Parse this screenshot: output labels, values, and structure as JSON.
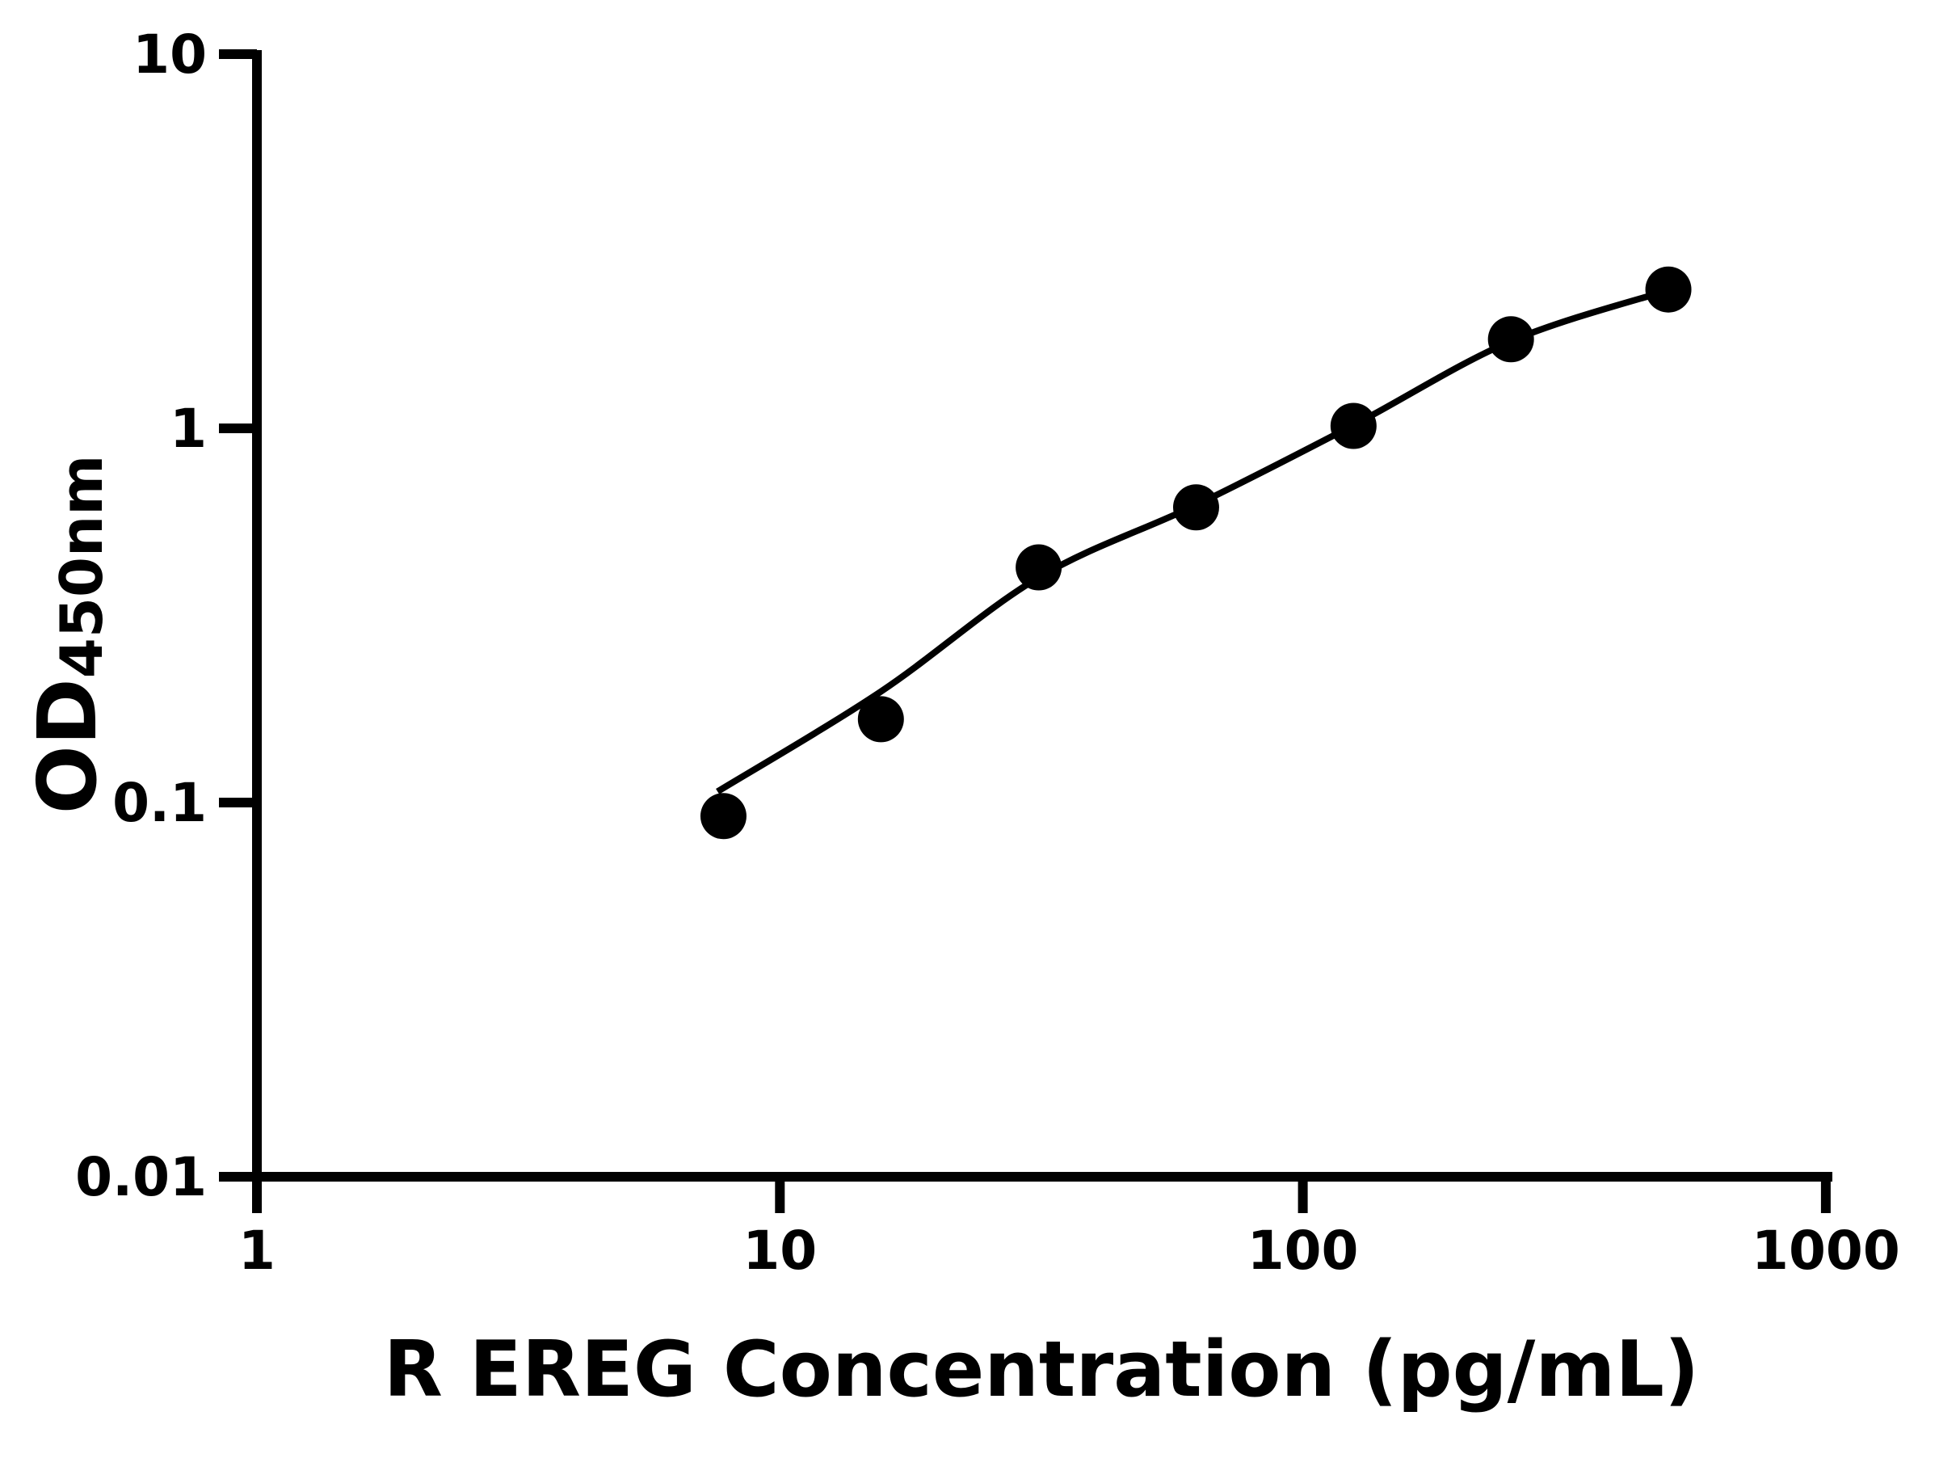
{
  "figure": {
    "background_color": "#ffffff",
    "foreground_color": "#000000"
  },
  "chart_data": {
    "type": "scatter",
    "title": "",
    "xlabel": "R EREG Concentration (pg/mL)",
    "ylabel": "OD",
    "ylabel_subscript": "450nm",
    "x_scale": "log",
    "y_scale": "log",
    "xlim": [
      1,
      1000
    ],
    "ylim": [
      0.01,
      10
    ],
    "grid": "off",
    "legend": "none",
    "x_ticks": [
      {
        "value": 1,
        "label": "1"
      },
      {
        "value": 10,
        "label": "10"
      },
      {
        "value": 100,
        "label": "100"
      },
      {
        "value": 1000,
        "label": "1000"
      }
    ],
    "y_ticks": [
      {
        "value": 10,
        "label": "10"
      },
      {
        "value": 1,
        "label": "1"
      },
      {
        "value": 0.1,
        "label": "0.1"
      },
      {
        "value": 0.01,
        "label": "0.01"
      }
    ],
    "series": [
      {
        "name": "standard-curve-fit",
        "type": "line",
        "color": "#000000",
        "points": [
          {
            "conc": 7.6,
            "od": 0.107
          },
          {
            "conc": 15.6,
            "od": 0.198
          },
          {
            "conc": 31.3,
            "od": 0.4
          },
          {
            "conc": 62.5,
            "od": 0.624
          },
          {
            "conc": 125,
            "od": 1.02
          },
          {
            "conc": 250,
            "od": 1.71
          },
          {
            "conc": 507,
            "od": 2.352
          }
        ]
      },
      {
        "name": "standard-points",
        "type": "scatter",
        "marker": "filled-circle",
        "color": "#000000",
        "points": [
          {
            "conc": 7.8,
            "od": 0.092
          },
          {
            "conc": 15.6,
            "od": 0.167
          },
          {
            "conc": 31.25,
            "od": 0.425
          },
          {
            "conc": 62.5,
            "od": 0.615
          },
          {
            "conc": 125,
            "od": 1.015
          },
          {
            "conc": 250,
            "od": 1.73
          },
          {
            "conc": 500,
            "od": 2.35
          }
        ]
      }
    ]
  }
}
